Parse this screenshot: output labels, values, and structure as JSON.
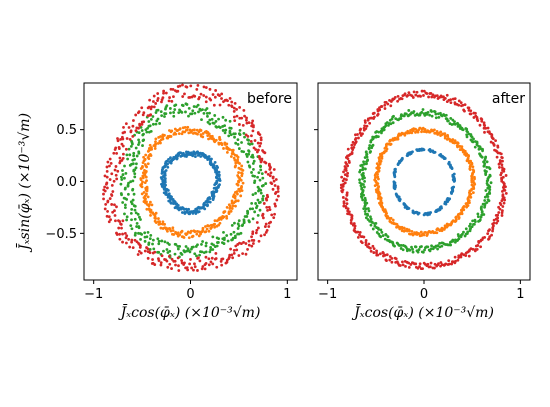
{
  "chart_data": [
    {
      "type": "scatter",
      "annotation": "before",
      "xlim": [
        -1.1,
        1.1
      ],
      "ylim": [
        -0.95,
        0.95
      ],
      "xticks": [
        -1,
        0,
        1
      ],
      "xtick_labels": [
        "−1",
        "0",
        "1"
      ],
      "yticks": [
        0.5,
        0.0,
        -0.5
      ],
      "ytick_labels": [
        "0.5",
        "0.0",
        "−0.5"
      ],
      "xlabel": "J̄ₓcos(φ̄ₓ) (×10⁻³√m)",
      "ylabel": "J̄ₓsin(φ̄ₓ) (×10⁻³√m)",
      "grid": false,
      "series": [
        {
          "color": "#1f77b4",
          "radius": 0.28,
          "spread": 0.025,
          "pattern": "continuous"
        },
        {
          "color": "#ff7f0e",
          "radius": 0.5,
          "spread": 0.035,
          "pattern": "continuous"
        },
        {
          "color": "#2ca02c",
          "radius": 0.68,
          "spread": 0.07,
          "pattern": "continuous"
        },
        {
          "color": "#d62728",
          "radius": 0.83,
          "spread": 0.07,
          "pattern": "continuous"
        }
      ]
    },
    {
      "type": "scatter",
      "annotation": "after",
      "xlim": [
        -1.1,
        1.1
      ],
      "ylim": [
        -0.95,
        0.95
      ],
      "xticks": [
        -1,
        0,
        1
      ],
      "xtick_labels": [
        "−1",
        "0",
        "1"
      ],
      "yticks": [
        0.5,
        0.0,
        -0.5
      ],
      "xlabel": "J̄ₓcos(φ̄ₓ) (×10⁻³√m)",
      "grid": false,
      "series": [
        {
          "color": "#1f77b4",
          "radius": 0.31,
          "spread": 0.01,
          "pattern": "dashed"
        },
        {
          "color": "#ff7f0e",
          "radius": 0.5,
          "spread": 0.02,
          "pattern": "continuous"
        },
        {
          "color": "#2ca02c",
          "radius": 0.66,
          "spread": 0.03,
          "pattern": "continuous"
        },
        {
          "color": "#d62728",
          "radius": 0.83,
          "spread": 0.03,
          "pattern": "continuous"
        }
      ]
    }
  ]
}
